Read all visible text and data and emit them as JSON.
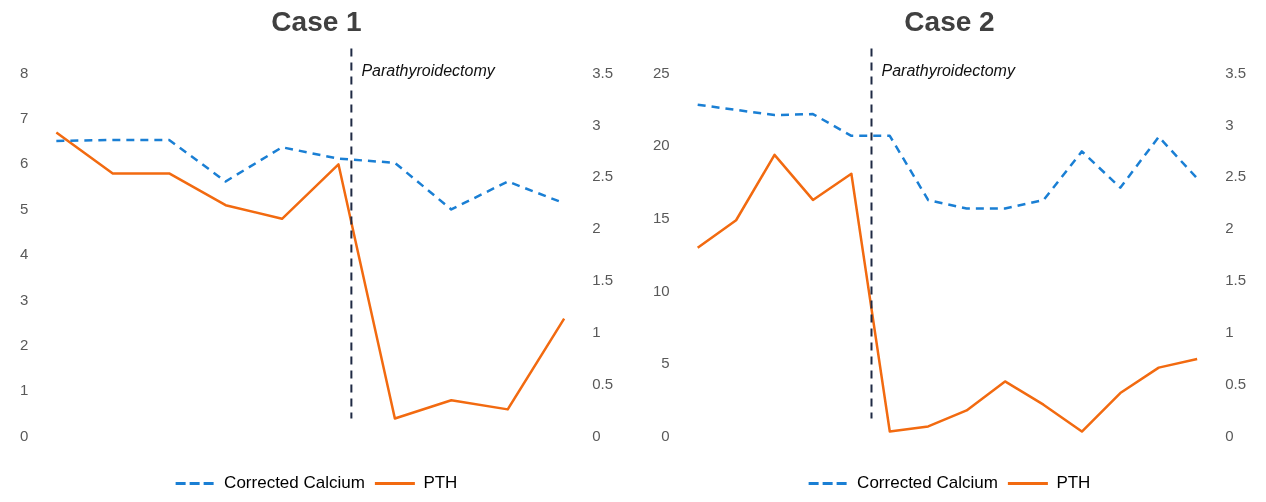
{
  "chart_data": [
    {
      "type": "line",
      "title": "Case 1",
      "categories": [
        null,
        null,
        null,
        null,
        null,
        null,
        null,
        null,
        null,
        null
      ],
      "ylim": [
        0,
        8
      ],
      "yticks": [
        0,
        1,
        2,
        3,
        4,
        5,
        6,
        7,
        8
      ],
      "y2lim": [
        0,
        3.5
      ],
      "y2ticks": [
        0,
        0.5,
        1,
        1.5,
        2,
        2.5,
        3,
        3.5
      ],
      "grid": false,
      "legend": "bottom",
      "marker": "none",
      "series": [
        {
          "name": "Corrected Calcium",
          "color": "#1a7fd4",
          "axis": "y2",
          "line_style": "dashed",
          "values": [
            2.85,
            2.86,
            2.86,
            2.46,
            2.79,
            2.68,
            2.64,
            2.19,
            2.46,
            2.25
          ]
        },
        {
          "name": "PTH",
          "color": "#f26a10",
          "line_style": "solid",
          "values": [
            6.7,
            5.8,
            5.8,
            5.1,
            4.8,
            6.0,
            0.4,
            0.8,
            0.6,
            2.6
          ]
        }
      ],
      "annotations": [
        "Parathyroidectomy"
      ]
    },
    {
      "type": "line",
      "title": "Case 2",
      "categories": [
        null,
        null,
        null,
        null,
        null,
        null,
        null,
        null,
        null,
        null,
        null,
        null,
        null,
        null
      ],
      "ylim": [
        0,
        25
      ],
      "yticks": [
        0,
        5,
        10,
        15,
        20,
        25
      ],
      "y2lim": [
        0,
        3.5
      ],
      "y2ticks": [
        0,
        0.5,
        1,
        1.5,
        2,
        2.5,
        3,
        3.5
      ],
      "grid": false,
      "legend": "bottom",
      "marker": "none",
      "series": [
        {
          "name": "Corrected Calcium",
          "color": "#1a7fd4",
          "axis": "y2",
          "line_style": "dashed",
          "values": [
            3.2,
            3.15,
            3.1,
            3.11,
            2.9,
            2.9,
            2.28,
            2.2,
            2.2,
            2.28,
            2.75,
            2.4,
            2.89,
            2.49
          ]
        },
        {
          "name": "PTH",
          "color": "#f26a10",
          "line_style": "solid",
          "values": [
            13.0,
            14.9,
            19.4,
            16.3,
            18.1,
            0.35,
            0.7,
            1.8,
            3.8,
            2.2,
            0.35,
            3.0,
            4.75,
            5.35
          ]
        }
      ],
      "annotations": [
        "Parathyroidectomy"
      ]
    }
  ]
}
